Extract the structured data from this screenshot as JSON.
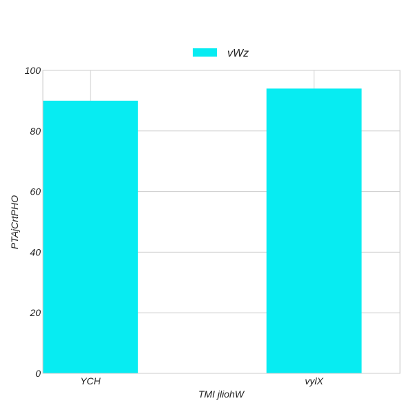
{
  "chart_data": {
    "type": "bar",
    "categories": [
      "YCH",
      "vylX"
    ],
    "series": [
      {
        "name": "vWz",
        "values": [
          90,
          94
        ],
        "color": "#07ecf2"
      }
    ],
    "xlabel": "TMI jliohW",
    "ylabel": "PTAjCrtPHO",
    "ylim": [
      0,
      100
    ],
    "yticks": [
      0,
      20,
      40,
      60,
      80,
      100
    ],
    "grid": true,
    "legend_position": "top-center"
  }
}
